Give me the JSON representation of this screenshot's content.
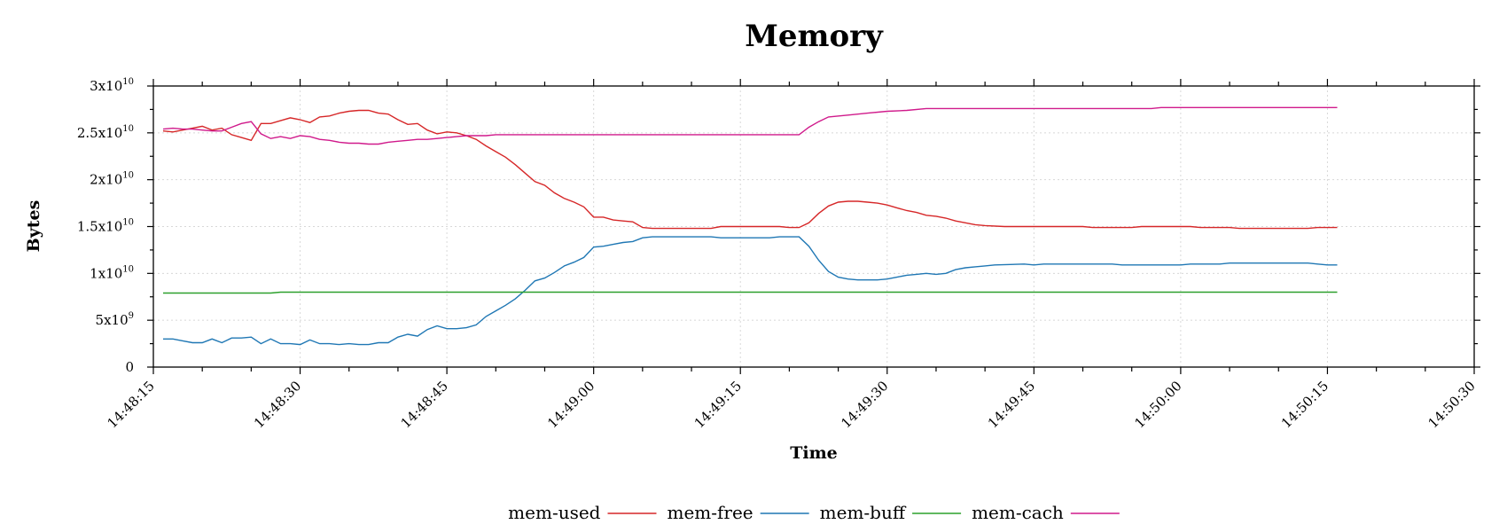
{
  "chart_data": {
    "type": "line",
    "title": "Memory",
    "xlabel": "Time",
    "ylabel": "Bytes",
    "grid": true,
    "legend_position": "bottom",
    "xlim": [
      "14:48:15",
      "14:50:30"
    ],
    "ylim": [
      0,
      30000000000
    ],
    "x_ticks": [
      "14:48:15",
      "14:48:30",
      "14:48:45",
      "14:49:00",
      "14:49:15",
      "14:49:30",
      "14:49:45",
      "14:50:00",
      "14:50:15",
      "14:50:30"
    ],
    "y_ticks": [
      {
        "value": 0,
        "mantissa": "0",
        "exponent": ""
      },
      {
        "value": 5000000000,
        "mantissa": "5x10",
        "exponent": "9"
      },
      {
        "value": 10000000000,
        "mantissa": "1x10",
        "exponent": "10"
      },
      {
        "value": 15000000000,
        "mantissa": "1.5x10",
        "exponent": "10"
      },
      {
        "value": 20000000000,
        "mantissa": "2x10",
        "exponent": "10"
      },
      {
        "value": 25000000000,
        "mantissa": "2.5x10",
        "exponent": "10"
      },
      {
        "value": 30000000000,
        "mantissa": "3x10",
        "exponent": "10"
      }
    ],
    "series": [
      {
        "name": "mem-used",
        "color": "#d62728",
        "points": [
          [
            "14:48:16",
            25200000000
          ],
          [
            "14:48:17",
            25100000000
          ],
          [
            "14:48:18",
            25300000000
          ],
          [
            "14:48:19",
            25500000000
          ],
          [
            "14:48:20",
            25700000000
          ],
          [
            "14:48:21",
            25300000000
          ],
          [
            "14:48:22",
            25500000000
          ],
          [
            "14:48:23",
            24800000000
          ],
          [
            "14:48:24",
            24500000000
          ],
          [
            "14:48:25",
            24200000000
          ],
          [
            "14:48:26",
            26000000000
          ],
          [
            "14:48:27",
            26000000000
          ],
          [
            "14:48:28",
            26300000000
          ],
          [
            "14:48:29",
            26600000000
          ],
          [
            "14:48:30",
            26400000000
          ],
          [
            "14:48:31",
            26100000000
          ],
          [
            "14:48:32",
            26700000000
          ],
          [
            "14:48:33",
            26800000000
          ],
          [
            "14:48:34",
            27100000000
          ],
          [
            "14:48:35",
            27300000000
          ],
          [
            "14:48:36",
            27400000000
          ],
          [
            "14:48:37",
            27400000000
          ],
          [
            "14:48:38",
            27100000000
          ],
          [
            "14:48:39",
            27000000000
          ],
          [
            "14:48:40",
            26400000000
          ],
          [
            "14:48:41",
            25900000000
          ],
          [
            "14:48:42",
            26000000000
          ],
          [
            "14:48:43",
            25300000000
          ],
          [
            "14:48:44",
            24900000000
          ],
          [
            "14:48:45",
            25100000000
          ],
          [
            "14:48:46",
            25000000000
          ],
          [
            "14:48:47",
            24700000000
          ],
          [
            "14:48:48",
            24300000000
          ],
          [
            "14:48:49",
            23600000000
          ],
          [
            "14:48:50",
            23000000000
          ],
          [
            "14:48:51",
            22400000000
          ],
          [
            "14:48:52",
            21600000000
          ],
          [
            "14:48:53",
            20700000000
          ],
          [
            "14:48:54",
            19800000000
          ],
          [
            "14:48:55",
            19400000000
          ],
          [
            "14:48:56",
            18600000000
          ],
          [
            "14:48:57",
            18000000000
          ],
          [
            "14:48:58",
            17600000000
          ],
          [
            "14:48:59",
            17100000000
          ],
          [
            "14:49:00",
            16000000000
          ],
          [
            "14:49:01",
            16000000000
          ],
          [
            "14:49:02",
            15700000000
          ],
          [
            "14:49:03",
            15600000000
          ],
          [
            "14:49:04",
            15500000000
          ],
          [
            "14:49:05",
            14900000000
          ],
          [
            "14:49:06",
            14800000000
          ],
          [
            "14:49:08",
            14800000000
          ],
          [
            "14:49:12",
            14800000000
          ],
          [
            "14:49:13",
            15000000000
          ],
          [
            "14:49:19",
            15000000000
          ],
          [
            "14:49:20",
            14900000000
          ],
          [
            "14:49:21",
            14900000000
          ],
          [
            "14:49:22",
            15400000000
          ],
          [
            "14:49:23",
            16400000000
          ],
          [
            "14:49:24",
            17200000000
          ],
          [
            "14:49:25",
            17600000000
          ],
          [
            "14:49:26",
            17700000000
          ],
          [
            "14:49:27",
            17700000000
          ],
          [
            "14:49:28",
            17600000000
          ],
          [
            "14:49:29",
            17500000000
          ],
          [
            "14:49:30",
            17300000000
          ],
          [
            "14:49:31",
            17000000000
          ],
          [
            "14:49:32",
            16700000000
          ],
          [
            "14:49:33",
            16500000000
          ],
          [
            "14:49:34",
            16200000000
          ],
          [
            "14:49:35",
            16100000000
          ],
          [
            "14:49:36",
            15900000000
          ],
          [
            "14:49:37",
            15600000000
          ],
          [
            "14:49:38",
            15400000000
          ],
          [
            "14:49:39",
            15200000000
          ],
          [
            "14:49:40",
            15100000000
          ],
          [
            "14:49:42",
            15000000000
          ],
          [
            "14:49:50",
            15000000000
          ],
          [
            "14:49:51",
            14900000000
          ],
          [
            "14:49:55",
            14900000000
          ],
          [
            "14:49:56",
            15000000000
          ],
          [
            "14:50:01",
            15000000000
          ],
          [
            "14:50:02",
            14900000000
          ],
          [
            "14:50:05",
            14900000000
          ],
          [
            "14:50:06",
            14800000000
          ],
          [
            "14:50:13",
            14800000000
          ],
          [
            "14:50:14",
            14900000000
          ],
          [
            "14:50:16",
            14900000000
          ]
        ]
      },
      {
        "name": "mem-free",
        "color": "#1f77b4",
        "points": [
          [
            "14:48:16",
            3000000000
          ],
          [
            "14:48:17",
            3000000000
          ],
          [
            "14:48:18",
            2800000000
          ],
          [
            "14:48:19",
            2600000000
          ],
          [
            "14:48:20",
            2600000000
          ],
          [
            "14:48:21",
            3000000000
          ],
          [
            "14:48:22",
            2600000000
          ],
          [
            "14:48:23",
            3100000000
          ],
          [
            "14:48:24",
            3100000000
          ],
          [
            "14:48:25",
            3200000000
          ],
          [
            "14:48:26",
            2500000000
          ],
          [
            "14:48:27",
            3000000000
          ],
          [
            "14:48:28",
            2500000000
          ],
          [
            "14:48:29",
            2500000000
          ],
          [
            "14:48:30",
            2400000000
          ],
          [
            "14:48:31",
            2900000000
          ],
          [
            "14:48:32",
            2500000000
          ],
          [
            "14:48:33",
            2500000000
          ],
          [
            "14:48:34",
            2400000000
          ],
          [
            "14:48:35",
            2500000000
          ],
          [
            "14:48:36",
            2400000000
          ],
          [
            "14:48:37",
            2400000000
          ],
          [
            "14:48:38",
            2600000000
          ],
          [
            "14:48:39",
            2600000000
          ],
          [
            "14:48:40",
            3200000000
          ],
          [
            "14:48:41",
            3500000000
          ],
          [
            "14:48:42",
            3300000000
          ],
          [
            "14:48:43",
            4000000000
          ],
          [
            "14:48:44",
            4400000000
          ],
          [
            "14:48:45",
            4100000000
          ],
          [
            "14:48:46",
            4100000000
          ],
          [
            "14:48:47",
            4200000000
          ],
          [
            "14:48:48",
            4500000000
          ],
          [
            "14:48:49",
            5400000000
          ],
          [
            "14:48:50",
            6000000000
          ],
          [
            "14:48:51",
            6600000000
          ],
          [
            "14:48:52",
            7300000000
          ],
          [
            "14:48:53",
            8200000000
          ],
          [
            "14:48:54",
            9200000000
          ],
          [
            "14:48:55",
            9500000000
          ],
          [
            "14:48:56",
            10100000000
          ],
          [
            "14:48:57",
            10800000000
          ],
          [
            "14:48:58",
            11200000000
          ],
          [
            "14:48:59",
            11700000000
          ],
          [
            "14:49:00",
            12800000000
          ],
          [
            "14:49:01",
            12900000000
          ],
          [
            "14:49:02",
            13100000000
          ],
          [
            "14:49:03",
            13300000000
          ],
          [
            "14:49:04",
            13400000000
          ],
          [
            "14:49:05",
            13800000000
          ],
          [
            "14:49:06",
            13900000000
          ],
          [
            "14:49:12",
            13900000000
          ],
          [
            "14:49:13",
            13800000000
          ],
          [
            "14:49:18",
            13800000000
          ],
          [
            "14:49:19",
            13900000000
          ],
          [
            "14:49:21",
            13900000000
          ],
          [
            "14:49:22",
            12900000000
          ],
          [
            "14:49:23",
            11400000000
          ],
          [
            "14:49:24",
            10200000000
          ],
          [
            "14:49:25",
            9600000000
          ],
          [
            "14:49:26",
            9400000000
          ],
          [
            "14:49:27",
            9300000000
          ],
          [
            "14:49:28",
            9300000000
          ],
          [
            "14:49:29",
            9300000000
          ],
          [
            "14:49:30",
            9400000000
          ],
          [
            "14:49:31",
            9600000000
          ],
          [
            "14:49:32",
            9800000000
          ],
          [
            "14:49:33",
            9900000000
          ],
          [
            "14:49:34",
            10000000000
          ],
          [
            "14:49:35",
            9900000000
          ],
          [
            "14:49:36",
            10000000000
          ],
          [
            "14:49:37",
            10400000000
          ],
          [
            "14:49:38",
            10600000000
          ],
          [
            "14:49:39",
            10700000000
          ],
          [
            "14:49:40",
            10800000000
          ],
          [
            "14:49:41",
            10900000000
          ],
          [
            "14:49:44",
            11000000000
          ],
          [
            "14:49:45",
            10900000000
          ],
          [
            "14:49:46",
            11000000000
          ],
          [
            "14:49:53",
            11000000000
          ],
          [
            "14:49:54",
            10900000000
          ],
          [
            "14:50:00",
            10900000000
          ],
          [
            "14:50:01",
            11000000000
          ],
          [
            "14:50:04",
            11000000000
          ],
          [
            "14:50:05",
            11100000000
          ],
          [
            "14:50:13",
            11100000000
          ],
          [
            "14:50:14",
            11000000000
          ],
          [
            "14:50:15",
            10900000000
          ],
          [
            "14:50:16",
            10900000000
          ]
        ]
      },
      {
        "name": "mem-buff",
        "color": "#2ca02c",
        "points": [
          [
            "14:48:16",
            7900000000
          ],
          [
            "14:48:27",
            7900000000
          ],
          [
            "14:48:28",
            8000000000
          ],
          [
            "14:50:16",
            8000000000
          ]
        ]
      },
      {
        "name": "mem-cach",
        "color": "#d01a8b",
        "points": [
          [
            "14:48:16",
            25400000000
          ],
          [
            "14:48:17",
            25500000000
          ],
          [
            "14:48:18",
            25400000000
          ],
          [
            "14:48:19",
            25400000000
          ],
          [
            "14:48:20",
            25300000000
          ],
          [
            "14:48:21",
            25200000000
          ],
          [
            "14:48:22",
            25200000000
          ],
          [
            "14:48:23",
            25600000000
          ],
          [
            "14:48:24",
            26000000000
          ],
          [
            "14:48:25",
            26200000000
          ],
          [
            "14:48:26",
            24900000000
          ],
          [
            "14:48:27",
            24400000000
          ],
          [
            "14:48:28",
            24600000000
          ],
          [
            "14:48:29",
            24400000000
          ],
          [
            "14:48:30",
            24700000000
          ],
          [
            "14:48:31",
            24600000000
          ],
          [
            "14:48:32",
            24300000000
          ],
          [
            "14:48:33",
            24200000000
          ],
          [
            "14:48:34",
            24000000000
          ],
          [
            "14:48:35",
            23900000000
          ],
          [
            "14:48:36",
            23900000000
          ],
          [
            "14:48:37",
            23800000000
          ],
          [
            "14:48:38",
            23800000000
          ],
          [
            "14:48:39",
            24000000000
          ],
          [
            "14:48:40",
            24100000000
          ],
          [
            "14:48:41",
            24200000000
          ],
          [
            "14:48:42",
            24300000000
          ],
          [
            "14:48:43",
            24300000000
          ],
          [
            "14:48:44",
            24400000000
          ],
          [
            "14:48:45",
            24500000000
          ],
          [
            "14:48:46",
            24600000000
          ],
          [
            "14:48:47",
            24700000000
          ],
          [
            "14:48:49",
            24700000000
          ],
          [
            "14:48:50",
            24800000000
          ],
          [
            "14:49:21",
            24800000000
          ],
          [
            "14:49:22",
            25600000000
          ],
          [
            "14:49:23",
            26200000000
          ],
          [
            "14:49:24",
            26700000000
          ],
          [
            "14:49:26",
            26900000000
          ],
          [
            "14:49:28",
            27100000000
          ],
          [
            "14:49:30",
            27300000000
          ],
          [
            "14:49:32",
            27400000000
          ],
          [
            "14:49:34",
            27600000000
          ],
          [
            "14:49:57",
            27600000000
          ],
          [
            "14:49:58",
            27700000000
          ],
          [
            "14:50:16",
            27700000000
          ]
        ]
      }
    ]
  }
}
